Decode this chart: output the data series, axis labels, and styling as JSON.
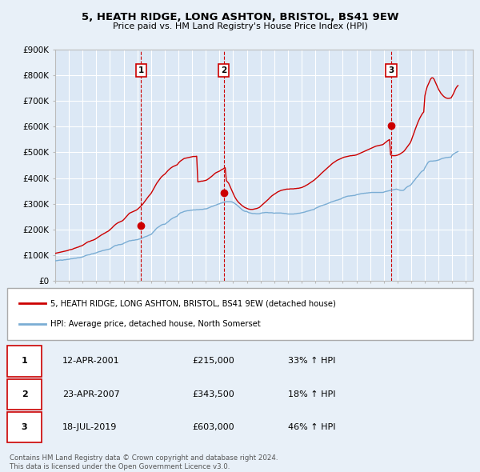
{
  "title": "5, HEATH RIDGE, LONG ASHTON, BRISTOL, BS41 9EW",
  "subtitle": "Price paid vs. HM Land Registry's House Price Index (HPI)",
  "bg_color": "#e8f0f8",
  "plot_bg_color": "#dce8f5",
  "grid_color": "#ffffff",
  "red_line_color": "#cc0000",
  "blue_line_color": "#7aadd4",
  "sales": [
    {
      "num": 1,
      "year": 2001.28,
      "price": 215000,
      "label": "1"
    },
    {
      "num": 2,
      "year": 2007.31,
      "price": 343500,
      "label": "2"
    },
    {
      "num": 3,
      "year": 2019.54,
      "price": 603000,
      "label": "3"
    }
  ],
  "sale_dates": [
    "12-APR-2001",
    "23-APR-2007",
    "18-JUL-2019"
  ],
  "sale_prices": [
    "£215,000",
    "£343,500",
    "£603,000"
  ],
  "sale_hpi": [
    "33% ↑ HPI",
    "18% ↑ HPI",
    "46% ↑ HPI"
  ],
  "legend_line1": "5, HEATH RIDGE, LONG ASHTON, BRISTOL, BS41 9EW (detached house)",
  "legend_line2": "HPI: Average price, detached house, North Somerset",
  "footer1": "Contains HM Land Registry data © Crown copyright and database right 2024.",
  "footer2": "This data is licensed under the Open Government Licence v3.0.",
  "ylim": [
    0,
    900000
  ],
  "xlim_start": 1995.0,
  "xlim_end": 2025.5,
  "hpi_data_x": [
    1995.0,
    1995.083,
    1995.167,
    1995.25,
    1995.333,
    1995.417,
    1995.5,
    1995.583,
    1995.667,
    1995.75,
    1995.833,
    1995.917,
    1996.0,
    1996.083,
    1996.167,
    1996.25,
    1996.333,
    1996.417,
    1996.5,
    1996.583,
    1996.667,
    1996.75,
    1996.833,
    1996.917,
    1997.0,
    1997.083,
    1997.167,
    1997.25,
    1997.333,
    1997.417,
    1997.5,
    1997.583,
    1997.667,
    1997.75,
    1997.833,
    1997.917,
    1998.0,
    1998.083,
    1998.167,
    1998.25,
    1998.333,
    1998.417,
    1998.5,
    1998.583,
    1998.667,
    1998.75,
    1998.833,
    1998.917,
    1999.0,
    1999.083,
    1999.167,
    1999.25,
    1999.333,
    1999.417,
    1999.5,
    1999.583,
    1999.667,
    1999.75,
    1999.833,
    1999.917,
    2000.0,
    2000.083,
    2000.167,
    2000.25,
    2000.333,
    2000.417,
    2000.5,
    2000.583,
    2000.667,
    2000.75,
    2000.833,
    2000.917,
    2001.0,
    2001.083,
    2001.167,
    2001.25,
    2001.333,
    2001.417,
    2001.5,
    2001.583,
    2001.667,
    2001.75,
    2001.833,
    2001.917,
    2002.0,
    2002.083,
    2002.167,
    2002.25,
    2002.333,
    2002.417,
    2002.5,
    2002.583,
    2002.667,
    2002.75,
    2002.833,
    2002.917,
    2003.0,
    2003.083,
    2003.167,
    2003.25,
    2003.333,
    2003.417,
    2003.5,
    2003.583,
    2003.667,
    2003.75,
    2003.833,
    2003.917,
    2004.0,
    2004.083,
    2004.167,
    2004.25,
    2004.333,
    2004.417,
    2004.5,
    2004.583,
    2004.667,
    2004.75,
    2004.833,
    2004.917,
    2005.0,
    2005.083,
    2005.167,
    2005.25,
    2005.333,
    2005.417,
    2005.5,
    2005.583,
    2005.667,
    2005.75,
    2005.833,
    2005.917,
    2006.0,
    2006.083,
    2006.167,
    2006.25,
    2006.333,
    2006.417,
    2006.5,
    2006.583,
    2006.667,
    2006.75,
    2006.833,
    2006.917,
    2007.0,
    2007.083,
    2007.167,
    2007.25,
    2007.333,
    2007.417,
    2007.5,
    2007.583,
    2007.667,
    2007.75,
    2007.833,
    2007.917,
    2008.0,
    2008.083,
    2008.167,
    2008.25,
    2008.333,
    2008.417,
    2008.5,
    2008.583,
    2008.667,
    2008.75,
    2008.833,
    2008.917,
    2009.0,
    2009.083,
    2009.167,
    2009.25,
    2009.333,
    2009.417,
    2009.5,
    2009.583,
    2009.667,
    2009.75,
    2009.833,
    2009.917,
    2010.0,
    2010.083,
    2010.167,
    2010.25,
    2010.333,
    2010.417,
    2010.5,
    2010.583,
    2010.667,
    2010.75,
    2010.833,
    2010.917,
    2011.0,
    2011.083,
    2011.167,
    2011.25,
    2011.333,
    2011.417,
    2011.5,
    2011.583,
    2011.667,
    2011.75,
    2011.833,
    2011.917,
    2012.0,
    2012.083,
    2012.167,
    2012.25,
    2012.333,
    2012.417,
    2012.5,
    2012.583,
    2012.667,
    2012.75,
    2012.833,
    2012.917,
    2013.0,
    2013.083,
    2013.167,
    2013.25,
    2013.333,
    2013.417,
    2013.5,
    2013.583,
    2013.667,
    2013.75,
    2013.833,
    2013.917,
    2014.0,
    2014.083,
    2014.167,
    2014.25,
    2014.333,
    2014.417,
    2014.5,
    2014.583,
    2014.667,
    2014.75,
    2014.833,
    2014.917,
    2015.0,
    2015.083,
    2015.167,
    2015.25,
    2015.333,
    2015.417,
    2015.5,
    2015.583,
    2015.667,
    2015.75,
    2015.833,
    2015.917,
    2016.0,
    2016.083,
    2016.167,
    2016.25,
    2016.333,
    2016.417,
    2016.5,
    2016.583,
    2016.667,
    2016.75,
    2016.833,
    2016.917,
    2017.0,
    2017.083,
    2017.167,
    2017.25,
    2017.333,
    2017.417,
    2017.5,
    2017.583,
    2017.667,
    2017.75,
    2017.833,
    2017.917,
    2018.0,
    2018.083,
    2018.167,
    2018.25,
    2018.333,
    2018.417,
    2018.5,
    2018.583,
    2018.667,
    2018.75,
    2018.833,
    2018.917,
    2019.0,
    2019.083,
    2019.167,
    2019.25,
    2019.333,
    2019.417,
    2019.5,
    2019.583,
    2019.667,
    2019.75,
    2019.833,
    2019.917,
    2020.0,
    2020.083,
    2020.167,
    2020.25,
    2020.333,
    2020.417,
    2020.5,
    2020.583,
    2020.667,
    2020.75,
    2020.833,
    2020.917,
    2021.0,
    2021.083,
    2021.167,
    2021.25,
    2021.333,
    2021.417,
    2021.5,
    2021.583,
    2021.667,
    2021.75,
    2021.833,
    2021.917,
    2022.0,
    2022.083,
    2022.167,
    2022.25,
    2022.333,
    2022.417,
    2022.5,
    2022.583,
    2022.667,
    2022.75,
    2022.833,
    2022.917,
    2023.0,
    2023.083,
    2023.167,
    2023.25,
    2023.333,
    2023.417,
    2023.5,
    2023.583,
    2023.667,
    2023.75,
    2023.833,
    2023.917,
    2024.0,
    2024.083,
    2024.167,
    2024.25,
    2024.333,
    2024.417
  ],
  "hpi_data_y": [
    78000,
    78500,
    79000,
    80000,
    80500,
    81000,
    80000,
    81000,
    82000,
    82000,
    83000,
    83500,
    84000,
    85000,
    86000,
    86000,
    87000,
    88000,
    88000,
    89000,
    90000,
    90000,
    91000,
    92000,
    93000,
    95000,
    97000,
    99000,
    100000,
    101000,
    101000,
    103000,
    105000,
    105000,
    107000,
    108000,
    109000,
    111000,
    113000,
    114000,
    115000,
    117000,
    118000,
    119000,
    120000,
    121000,
    122000,
    123000,
    124000,
    127000,
    130000,
    133000,
    136000,
    138000,
    138000,
    140000,
    141000,
    141000,
    142000,
    143000,
    146000,
    148000,
    150000,
    152000,
    154000,
    156000,
    156000,
    157000,
    158000,
    158000,
    159000,
    160000,
    160000,
    162000,
    163000,
    164000,
    166000,
    168000,
    170000,
    172000,
    173000,
    175000,
    177000,
    179000,
    180000,
    185000,
    190000,
    195000,
    200000,
    205000,
    208000,
    211000,
    214000,
    217000,
    219000,
    220000,
    220000,
    223000,
    227000,
    230000,
    234000,
    238000,
    241000,
    244000,
    246000,
    248000,
    250000,
    252000,
    258000,
    262000,
    265000,
    266000,
    268000,
    270000,
    271000,
    272000,
    273000,
    273000,
    274000,
    275000,
    275000,
    276000,
    276000,
    276000,
    277000,
    277000,
    277000,
    278000,
    278000,
    278000,
    279000,
    280000,
    280000,
    281000,
    283000,
    285000,
    287000,
    289000,
    290000,
    292000,
    294000,
    295000,
    297000,
    299000,
    300000,
    302000,
    303000,
    305000,
    306000,
    307000,
    308000,
    308000,
    308000,
    308000,
    308000,
    307000,
    305000,
    302000,
    299000,
    296000,
    292000,
    288000,
    284000,
    280000,
    276000,
    273000,
    271000,
    270000,
    270000,
    267000,
    265000,
    264000,
    263000,
    262000,
    262000,
    262000,
    261000,
    261000,
    261000,
    261000,
    263000,
    264000,
    265000,
    265000,
    266000,
    266000,
    266000,
    265000,
    265000,
    265000,
    265000,
    264000,
    263000,
    264000,
    264000,
    264000,
    264000,
    264000,
    264000,
    263000,
    263000,
    262000,
    262000,
    261000,
    260000,
    260000,
    260000,
    260000,
    260000,
    260000,
    261000,
    261000,
    262000,
    263000,
    263000,
    264000,
    265000,
    266000,
    267000,
    268000,
    270000,
    271000,
    272000,
    273000,
    275000,
    276000,
    277000,
    278000,
    282000,
    284000,
    286000,
    288000,
    290000,
    292000,
    293000,
    295000,
    296000,
    298000,
    299000,
    301000,
    303000,
    305000,
    307000,
    308000,
    310000,
    311000,
    313000,
    314000,
    315000,
    317000,
    318000,
    320000,
    323000,
    325000,
    326000,
    328000,
    329000,
    330000,
    330000,
    331000,
    331000,
    332000,
    332000,
    333000,
    335000,
    336000,
    337000,
    338000,
    339000,
    340000,
    340000,
    341000,
    341000,
    342000,
    342000,
    343000,
    343000,
    344000,
    344000,
    344000,
    344000,
    344000,
    344000,
    344000,
    344000,
    344000,
    344000,
    344000,
    345000,
    347000,
    348000,
    349000,
    350000,
    351000,
    352000,
    353000,
    354000,
    355000,
    356000,
    357000,
    356000,
    354000,
    353000,
    352000,
    352000,
    352000,
    355000,
    360000,
    364000,
    367000,
    369000,
    371000,
    375000,
    381000,
    387000,
    392000,
    398000,
    403000,
    408000,
    414000,
    420000,
    425000,
    428000,
    430000,
    440000,
    448000,
    455000,
    462000,
    465000,
    466000,
    466000,
    466000,
    467000,
    467000,
    468000,
    469000,
    470000,
    472000,
    474000,
    476000,
    477000,
    478000,
    479000,
    480000,
    480000,
    481000,
    481000,
    482000,
    490000,
    493000,
    496000,
    499000,
    501000,
    503000
  ],
  "red_data_x": [
    1995.0,
    1995.083,
    1995.167,
    1995.25,
    1995.333,
    1995.417,
    1995.5,
    1995.583,
    1995.667,
    1995.75,
    1995.833,
    1995.917,
    1996.0,
    1996.083,
    1996.167,
    1996.25,
    1996.333,
    1996.417,
    1996.5,
    1996.583,
    1996.667,
    1996.75,
    1996.833,
    1996.917,
    1997.0,
    1997.083,
    1997.167,
    1997.25,
    1997.333,
    1997.417,
    1997.5,
    1997.583,
    1997.667,
    1997.75,
    1997.833,
    1997.917,
    1998.0,
    1998.083,
    1998.167,
    1998.25,
    1998.333,
    1998.417,
    1998.5,
    1998.583,
    1998.667,
    1998.75,
    1998.833,
    1998.917,
    1999.0,
    1999.083,
    1999.167,
    1999.25,
    1999.333,
    1999.417,
    1999.5,
    1999.583,
    1999.667,
    1999.75,
    1999.833,
    1999.917,
    2000.0,
    2000.083,
    2000.167,
    2000.25,
    2000.333,
    2000.417,
    2000.5,
    2000.583,
    2000.667,
    2000.75,
    2000.833,
    2000.917,
    2001.0,
    2001.083,
    2001.167,
    2001.25,
    2001.333,
    2001.417,
    2001.5,
    2001.583,
    2001.667,
    2001.75,
    2001.833,
    2001.917,
    2002.0,
    2002.083,
    2002.167,
    2002.25,
    2002.333,
    2002.417,
    2002.5,
    2002.583,
    2002.667,
    2002.75,
    2002.833,
    2002.917,
    2003.0,
    2003.083,
    2003.167,
    2003.25,
    2003.333,
    2003.417,
    2003.5,
    2003.583,
    2003.667,
    2003.75,
    2003.833,
    2003.917,
    2004.0,
    2004.083,
    2004.167,
    2004.25,
    2004.333,
    2004.417,
    2004.5,
    2004.583,
    2004.667,
    2004.75,
    2004.833,
    2004.917,
    2005.0,
    2005.083,
    2005.167,
    2005.25,
    2005.333,
    2005.417,
    2005.5,
    2005.583,
    2005.667,
    2005.75,
    2005.833,
    2005.917,
    2006.0,
    2006.083,
    2006.167,
    2006.25,
    2006.333,
    2006.417,
    2006.5,
    2006.583,
    2006.667,
    2006.75,
    2006.833,
    2006.917,
    2007.0,
    2007.083,
    2007.167,
    2007.25,
    2007.333,
    2007.417,
    2007.5,
    2007.583,
    2007.667,
    2007.75,
    2007.833,
    2007.917,
    2008.0,
    2008.083,
    2008.167,
    2008.25,
    2008.333,
    2008.417,
    2008.5,
    2008.583,
    2008.667,
    2008.75,
    2008.833,
    2008.917,
    2009.0,
    2009.083,
    2009.167,
    2009.25,
    2009.333,
    2009.417,
    2009.5,
    2009.583,
    2009.667,
    2009.75,
    2009.833,
    2009.917,
    2010.0,
    2010.083,
    2010.167,
    2010.25,
    2010.333,
    2010.417,
    2010.5,
    2010.583,
    2010.667,
    2010.75,
    2010.833,
    2010.917,
    2011.0,
    2011.083,
    2011.167,
    2011.25,
    2011.333,
    2011.417,
    2011.5,
    2011.583,
    2011.667,
    2011.75,
    2011.833,
    2011.917,
    2012.0,
    2012.083,
    2012.167,
    2012.25,
    2012.333,
    2012.417,
    2012.5,
    2012.583,
    2012.667,
    2012.75,
    2012.833,
    2012.917,
    2013.0,
    2013.083,
    2013.167,
    2013.25,
    2013.333,
    2013.417,
    2013.5,
    2013.583,
    2013.667,
    2013.75,
    2013.833,
    2013.917,
    2014.0,
    2014.083,
    2014.167,
    2014.25,
    2014.333,
    2014.417,
    2014.5,
    2014.583,
    2014.667,
    2014.75,
    2014.833,
    2014.917,
    2015.0,
    2015.083,
    2015.167,
    2015.25,
    2015.333,
    2015.417,
    2015.5,
    2015.583,
    2015.667,
    2015.75,
    2015.833,
    2015.917,
    2016.0,
    2016.083,
    2016.167,
    2016.25,
    2016.333,
    2016.417,
    2016.5,
    2016.583,
    2016.667,
    2016.75,
    2016.833,
    2016.917,
    2017.0,
    2017.083,
    2017.167,
    2017.25,
    2017.333,
    2017.417,
    2017.5,
    2017.583,
    2017.667,
    2017.75,
    2017.833,
    2017.917,
    2018.0,
    2018.083,
    2018.167,
    2018.25,
    2018.333,
    2018.417,
    2018.5,
    2018.583,
    2018.667,
    2018.75,
    2018.833,
    2018.917,
    2019.0,
    2019.083,
    2019.167,
    2019.25,
    2019.333,
    2019.417,
    2019.5,
    2019.583,
    2019.667,
    2019.75,
    2019.833,
    2019.917,
    2020.0,
    2020.083,
    2020.167,
    2020.25,
    2020.333,
    2020.417,
    2020.5,
    2020.583,
    2020.667,
    2020.75,
    2020.833,
    2020.917,
    2021.0,
    2021.083,
    2021.167,
    2021.25,
    2021.333,
    2021.417,
    2021.5,
    2021.583,
    2021.667,
    2021.75,
    2021.833,
    2021.917,
    2022.0,
    2022.083,
    2022.167,
    2022.25,
    2022.333,
    2022.417,
    2022.5,
    2022.583,
    2022.667,
    2022.75,
    2022.833,
    2022.917,
    2023.0,
    2023.083,
    2023.167,
    2023.25,
    2023.333,
    2023.417,
    2023.5,
    2023.583,
    2023.667,
    2023.75,
    2023.833,
    2023.917,
    2024.0,
    2024.083,
    2024.167,
    2024.25,
    2024.333,
    2024.417
  ],
  "red_data_y": [
    107000,
    108000,
    109000,
    110000,
    111000,
    112000,
    113000,
    114000,
    115000,
    116000,
    117000,
    118000,
    120000,
    121000,
    122000,
    123000,
    125000,
    127000,
    128000,
    130000,
    131000,
    133000,
    135000,
    136000,
    138000,
    141000,
    144000,
    147000,
    150000,
    152000,
    153000,
    155000,
    157000,
    158000,
    160000,
    162000,
    165000,
    168000,
    171000,
    174000,
    177000,
    180000,
    182000,
    185000,
    187000,
    190000,
    192000,
    195000,
    199000,
    203000,
    207000,
    212000,
    216000,
    220000,
    223000,
    226000,
    228000,
    230000,
    232000,
    234000,
    238000,
    243000,
    248000,
    253000,
    258000,
    263000,
    265000,
    267000,
    269000,
    271000,
    273000,
    275000,
    278000,
    282000,
    286000,
    290000,
    295000,
    300000,
    306000,
    312000,
    318000,
    324000,
    330000,
    335000,
    340000,
    348000,
    356000,
    364000,
    372000,
    380000,
    386000,
    392000,
    398000,
    404000,
    408000,
    412000,
    415000,
    420000,
    425000,
    430000,
    434000,
    438000,
    441000,
    444000,
    446000,
    448000,
    450000,
    452000,
    458000,
    463000,
    467000,
    470000,
    473000,
    476000,
    477000,
    478000,
    479000,
    480000,
    481000,
    482000,
    483000,
    484000,
    484000,
    484000,
    485000,
    385000,
    386000,
    387000,
    388000,
    388000,
    389000,
    390000,
    391000,
    393000,
    396000,
    399000,
    403000,
    406000,
    410000,
    414000,
    418000,
    421000,
    423000,
    425000,
    427000,
    430000,
    433000,
    435000,
    438000,
    440000,
    390000,
    385000,
    380000,
    370000,
    360000,
    350000,
    340000,
    330000,
    322000,
    315000,
    309000,
    304000,
    300000,
    296000,
    292000,
    289000,
    286000,
    284000,
    282000,
    280000,
    279000,
    278000,
    278000,
    278000,
    279000,
    280000,
    281000,
    282000,
    284000,
    286000,
    290000,
    294000,
    298000,
    302000,
    306000,
    310000,
    314000,
    318000,
    323000,
    327000,
    331000,
    334000,
    337000,
    340000,
    343000,
    346000,
    348000,
    350000,
    352000,
    353000,
    354000,
    355000,
    356000,
    357000,
    357000,
    357000,
    358000,
    358000,
    358000,
    358000,
    359000,
    359000,
    360000,
    360000,
    361000,
    362000,
    363000,
    365000,
    367000,
    369000,
    372000,
    374000,
    377000,
    380000,
    383000,
    386000,
    389000,
    392000,
    396000,
    400000,
    404000,
    408000,
    412000,
    417000,
    421000,
    425000,
    429000,
    433000,
    437000,
    441000,
    445000,
    449000,
    453000,
    457000,
    460000,
    463000,
    466000,
    469000,
    471000,
    473000,
    475000,
    477000,
    479000,
    481000,
    482000,
    483000,
    484000,
    485000,
    486000,
    487000,
    487000,
    488000,
    488000,
    489000,
    490000,
    492000,
    494000,
    496000,
    498000,
    500000,
    502000,
    504000,
    506000,
    508000,
    510000,
    512000,
    514000,
    516000,
    518000,
    520000,
    522000,
    524000,
    525000,
    526000,
    527000,
    528000,
    529000,
    530000,
    533000,
    537000,
    540000,
    544000,
    547000,
    550000,
    490000,
    488000,
    487000,
    487000,
    487000,
    488000,
    489000,
    491000,
    493000,
    496000,
    499000,
    502000,
    506000,
    512000,
    518000,
    524000,
    530000,
    536000,
    545000,
    558000,
    570000,
    583000,
    595000,
    607000,
    618000,
    628000,
    637000,
    645000,
    652000,
    657000,
    720000,
    740000,
    755000,
    765000,
    775000,
    785000,
    790000,
    790000,
    785000,
    775000,
    765000,
    755000,
    745000,
    738000,
    730000,
    725000,
    720000,
    716000,
    713000,
    711000,
    710000,
    710000,
    711000,
    712000,
    720000,
    728000,
    738000,
    748000,
    755000,
    760000
  ]
}
